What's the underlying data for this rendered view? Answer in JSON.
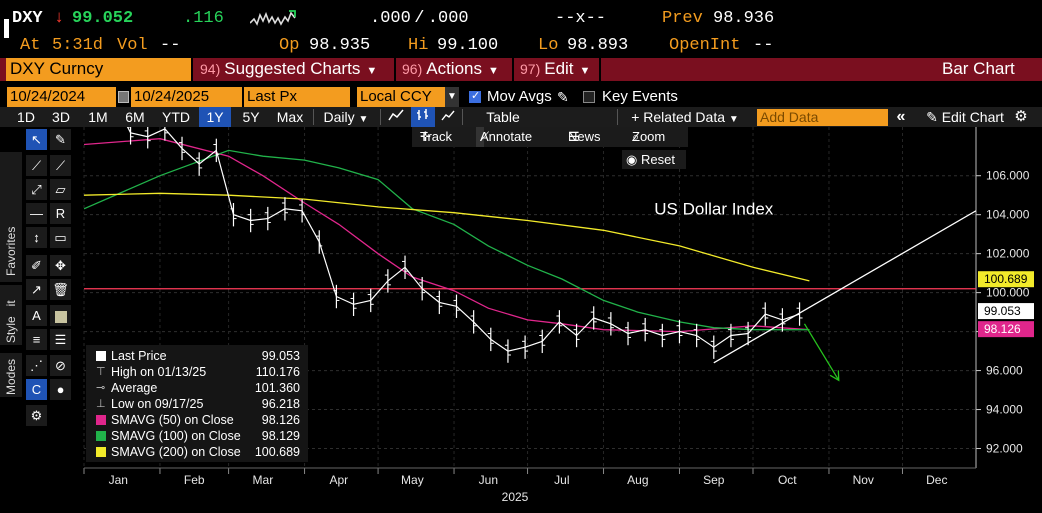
{
  "quote": {
    "ticker": "DXY",
    "arrow": "↓",
    "last": "99.052",
    "change": ".116",
    "bidask": ".000 / .000",
    "size": "--x--",
    "prev_label": "Prev",
    "prev_value": "98.936",
    "at_label": "At",
    "at_time": "5:31d",
    "vol_label": "Vol",
    "vol_value": "--",
    "op_label": "Op",
    "op_value": "98.935",
    "hi_label": "Hi",
    "hi_value": "99.100",
    "lo_label": "Lo",
    "lo_value": "98.893",
    "oi_label": "OpenInt",
    "oi_value": "--"
  },
  "menubar": {
    "security": "DXY Curncy",
    "suggested_num": "94)",
    "suggested": "Suggested Charts",
    "actions_num": "96)",
    "actions": "Actions",
    "edit_num": "97)",
    "edit": "Edit",
    "title": "Bar Chart"
  },
  "controls": {
    "start_date": "10/24/2024",
    "end_date": "10/24/2025",
    "field": "Last Px",
    "currency": "Local CCY",
    "mov_avgs": "Mov Avgs",
    "key_events": "Key Events"
  },
  "toolbar": {
    "periods": [
      "1D",
      "3D",
      "1M",
      "6M",
      "YTD",
      "1Y",
      "5Y",
      "Max"
    ],
    "selected_period": "1Y",
    "frequency": "Daily",
    "table": "Table",
    "related": "Related Data",
    "add_data_placeholder": "Add Data",
    "edit_chart": "Edit Chart"
  },
  "float_toolbar": {
    "track": "Track",
    "annotate": "Annotate",
    "news": "News",
    "zoom": "Zoom",
    "reset": "Reset"
  },
  "side_tabs": {
    "favorites": "Favorites",
    "edit": "Edit",
    "style": "Style",
    "modes": "Modes"
  },
  "legend": {
    "rows": [
      {
        "label": "Last Price",
        "value": "99.053",
        "color": "#ffffff",
        "marker": "box"
      },
      {
        "label": "High on 01/13/25",
        "value": "110.176",
        "color": "#bbbbbb",
        "marker": "high"
      },
      {
        "label": "Average",
        "value": "101.360",
        "color": "#bbbbbb",
        "marker": "avg"
      },
      {
        "label": "Low on 09/17/25",
        "value": "96.218",
        "color": "#bbbbbb",
        "marker": "low"
      },
      {
        "label": "SMAVG (50)  on Close",
        "value": "98.126",
        "color": "#e0268c",
        "marker": "box"
      },
      {
        "label": "SMAVG (100)  on Close",
        "value": "98.129",
        "color": "#21b24a",
        "marker": "box"
      },
      {
        "label": "SMAVG (200)  on Close",
        "value": "100.689",
        "color": "#f2ea2a",
        "marker": "box"
      }
    ]
  },
  "chart_data": {
    "type": "line",
    "title": "US Dollar Index",
    "y_ticks": [
      "92.000",
      "94.000",
      "96.000",
      "98.000",
      "100.000",
      "102.000",
      "104.000",
      "106.000"
    ],
    "ylim": [
      91.0,
      108.5
    ],
    "x_ticks": [
      "Jan",
      "Feb",
      "Mar",
      "Apr",
      "May",
      "Jun",
      "Jul",
      "Aug",
      "Sep",
      "Oct",
      "Nov",
      "Dec"
    ],
    "x_year": "2025",
    "xlim": [
      "2025-01-01",
      "2025-12-31"
    ],
    "price_series": {
      "name": "Last Price",
      "color": "#ffffff",
      "dates": [
        "2025-01-06",
        "2025-01-13",
        "2025-01-20",
        "2025-01-27",
        "2025-02-03",
        "2025-02-10",
        "2025-02-17",
        "2025-02-24",
        "2025-03-03",
        "2025-03-10",
        "2025-03-17",
        "2025-03-24",
        "2025-03-31",
        "2025-04-07",
        "2025-04-14",
        "2025-04-21",
        "2025-04-28",
        "2025-05-05",
        "2025-05-12",
        "2025-05-19",
        "2025-05-26",
        "2025-06-02",
        "2025-06-09",
        "2025-06-16",
        "2025-06-23",
        "2025-06-30",
        "2025-07-07",
        "2025-07-14",
        "2025-07-21",
        "2025-07-28",
        "2025-08-04",
        "2025-08-11",
        "2025-08-18",
        "2025-08-25",
        "2025-09-01",
        "2025-09-08",
        "2025-09-15",
        "2025-09-22",
        "2025-09-29",
        "2025-10-06",
        "2025-10-13",
        "2025-10-20"
      ],
      "values": [
        109.2,
        109.9,
        108.2,
        108.0,
        108.4,
        107.4,
        106.6,
        107.3,
        104.0,
        103.7,
        103.8,
        104.3,
        104.2,
        102.6,
        99.8,
        99.4,
        99.6,
        100.6,
        101.3,
        100.2,
        99.5,
        99.3,
        98.5,
        97.6,
        97.0,
        97.2,
        97.5,
        98.5,
        97.8,
        98.7,
        98.4,
        97.9,
        98.1,
        97.8,
        98.0,
        97.8,
        97.2,
        97.8,
        97.9,
        98.9,
        98.6,
        98.9
      ]
    },
    "moving_averages": [
      {
        "name": "SMAVG (50)  on Close",
        "color": "#e0268c",
        "dates": [
          "2025-01-01",
          "2025-02-01",
          "2025-03-01",
          "2025-03-15",
          "2025-04-01",
          "2025-04-15",
          "2025-05-01",
          "2025-05-15",
          "2025-06-01",
          "2025-06-15",
          "2025-07-01",
          "2025-07-15",
          "2025-08-01",
          "2025-09-01",
          "2025-10-01",
          "2025-10-24"
        ],
        "values": [
          107.6,
          107.9,
          107.0,
          106.0,
          104.6,
          103.5,
          102.0,
          100.8,
          100.1,
          99.2,
          98.6,
          98.4,
          98.1,
          98.0,
          98.3,
          98.1
        ]
      },
      {
        "name": "SMAVG (100)  on Close",
        "color": "#21b24a",
        "dates": [
          "2025-01-01",
          "2025-02-01",
          "2025-03-01",
          "2025-03-15",
          "2025-04-01",
          "2025-04-15",
          "2025-05-01",
          "2025-05-15",
          "2025-06-01",
          "2025-06-15",
          "2025-07-01",
          "2025-07-15",
          "2025-08-01",
          "2025-08-15",
          "2025-09-01",
          "2025-09-15",
          "2025-10-01",
          "2025-10-24"
        ],
        "values": [
          104.3,
          106.0,
          107.3,
          107.0,
          106.8,
          106.4,
          105.8,
          104.3,
          103.5,
          102.4,
          101.4,
          100.7,
          99.6,
          99.0,
          98.5,
          98.2,
          98.1,
          98.1
        ]
      },
      {
        "name": "SMAVG (200)  on Close",
        "color": "#f2ea2a",
        "dates": [
          "2025-01-01",
          "2025-02-01",
          "2025-03-01",
          "2025-04-01",
          "2025-05-01",
          "2025-06-01",
          "2025-07-01",
          "2025-08-01",
          "2025-09-01",
          "2025-10-01",
          "2025-10-24"
        ],
        "values": [
          105.0,
          105.1,
          105.0,
          104.8,
          104.4,
          104.1,
          103.7,
          103.2,
          102.4,
          101.3,
          100.6
        ]
      }
    ],
    "horizontal_lines": [
      {
        "value": 100.2,
        "color": "#ff3b5a"
      }
    ],
    "trendline": {
      "color": "#ffffff",
      "start": {
        "date": "2025-09-15",
        "value": 96.4
      },
      "end": {
        "date": "2025-12-31",
        "value": 104.2
      }
    },
    "projection_arrow": {
      "color": "#27c21e",
      "start": {
        "date": "2025-10-22",
        "value": 98.4
      },
      "end": {
        "date": "2025-11-05",
        "value": 95.5
      }
    },
    "price_tags": [
      {
        "value": "100.689",
        "y": 100.689,
        "bg": "#f2ea2a",
        "fg": "#000000"
      },
      {
        "value": "99.053",
        "y": 99.053,
        "bg": "#ffffff",
        "fg": "#000000"
      },
      {
        "value": "98.126",
        "y": 98.126,
        "bg": "#e0268c",
        "fg": "#ffffff"
      }
    ]
  }
}
